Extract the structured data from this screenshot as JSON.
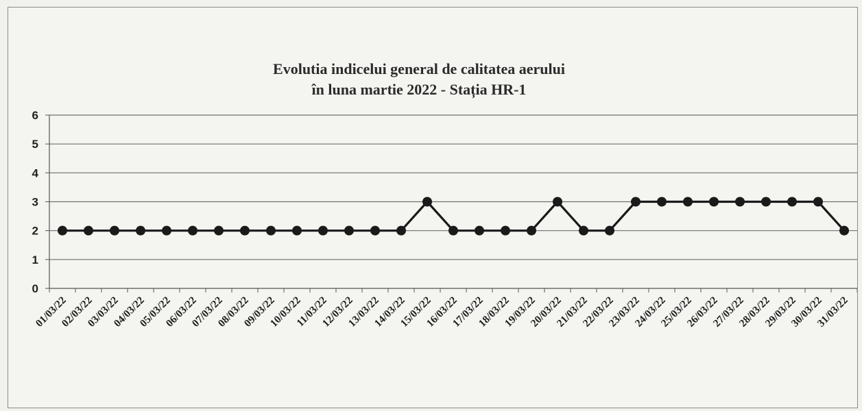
{
  "chart_data": {
    "type": "line",
    "title": "Evolutia indicelui  general de calitatea aerului",
    "subtitle": "în luna martie 2022 - Stația HR-1",
    "xlabel": "",
    "ylabel": "",
    "ylim": [
      0,
      6
    ],
    "yticks": [
      "0",
      "1",
      "2",
      "3",
      "4",
      "5",
      "6"
    ],
    "grid": true,
    "legend": "none",
    "x": [
      "01/03/22",
      "02/03/22",
      "03/03/22",
      "04/03/22",
      "05/03/22",
      "06/03/22",
      "07/03/22",
      "08/03/22",
      "09/03/22",
      "10/03/22",
      "11/03/22",
      "12/03/22",
      "13/03/22",
      "14/03/22",
      "15/03/22",
      "16/03/22",
      "17/03/22",
      "18/03/22",
      "19/03/22",
      "20/03/22",
      "21/03/22",
      "22/03/22",
      "23/03/22",
      "24/03/22",
      "25/03/22",
      "26/03/22",
      "27/03/22",
      "28/03/22",
      "29/03/22",
      "30/03/22",
      "31/03/22"
    ],
    "series": [
      {
        "values": [
          2,
          2,
          2,
          2,
          2,
          2,
          2,
          2,
          2,
          2,
          2,
          2,
          2,
          2,
          3,
          2,
          2,
          2,
          2,
          3,
          2,
          2,
          3,
          3,
          3,
          3,
          3,
          3,
          3,
          3,
          2
        ],
        "color": "#1a1a1a",
        "marker": "circle"
      }
    ]
  }
}
